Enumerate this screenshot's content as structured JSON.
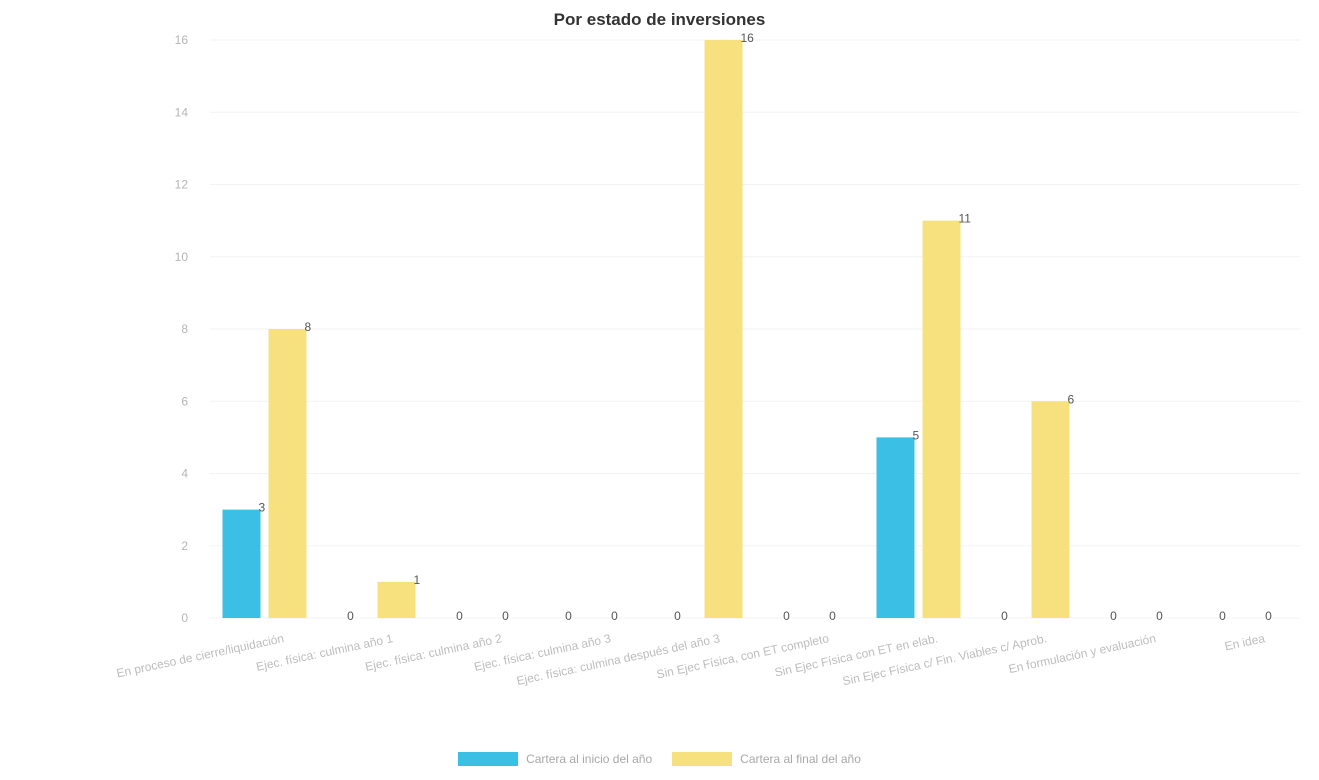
{
  "chart_data": {
    "type": "bar",
    "title": "Por estado de inversiones",
    "categories": [
      "En proceso de cierre/liquidación",
      "Ejec. física: culmina año 1",
      "Ejec. física: culmina año 2",
      "Ejec. física: culmina año 3",
      "Ejec. física: culmina después del año 3",
      "Sin Ejec Física, con ET completo",
      "Sin Ejec Física con ET en elab.",
      "Sin Ejec Física c/ Fin. Viables c/ Aprob.",
      "En formulación y evaluación",
      "En idea"
    ],
    "series": [
      {
        "name": "Cartera al inicio del año",
        "values": [
          3,
          0,
          0,
          0,
          0,
          0,
          5,
          0,
          0,
          0
        ]
      },
      {
        "name": "Cartera al final del año",
        "values": [
          8,
          1,
          0,
          0,
          16,
          0,
          11,
          6,
          0,
          0
        ]
      }
    ],
    "ylim": [
      0,
      16
    ],
    "yticks": [
      0,
      2,
      4,
      6,
      8,
      10,
      12,
      14,
      16
    ],
    "colors": [
      "#3bbfe4",
      "#f7e17f"
    ],
    "grid": true,
    "legend_position": "bottom"
  }
}
